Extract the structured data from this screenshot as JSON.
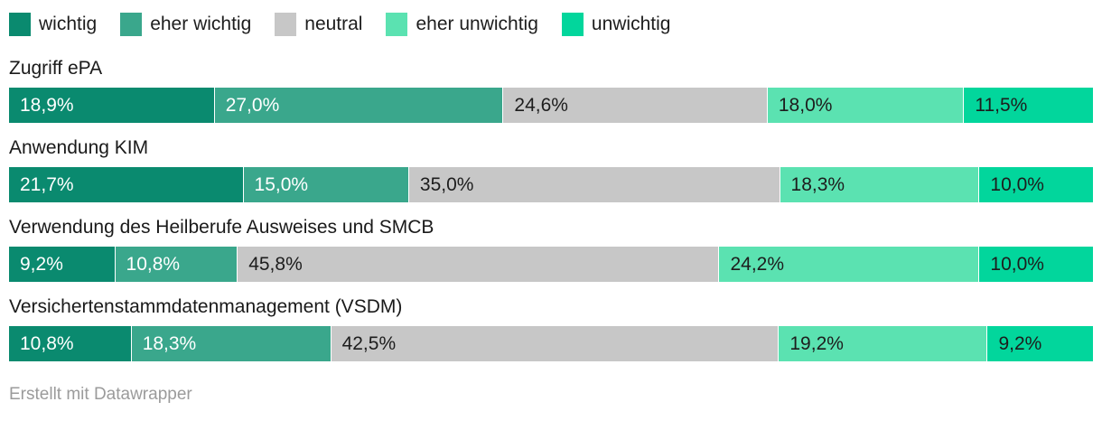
{
  "chart_data": {
    "type": "bar",
    "variant": "stacked-horizontal",
    "unit": "%",
    "xlim": [
      0,
      100
    ],
    "grid": false,
    "legend_position": "top",
    "legend": [
      "wichtig",
      "eher wichtig",
      "neutral",
      "eher unwichtig",
      "unwichtig"
    ],
    "colors": [
      "#0a8a6f",
      "#3aa78c",
      "#c7c7c7",
      "#5be2b1",
      "#02d69c"
    ],
    "label_colors": [
      "#ffffff",
      "#ffffff",
      "#1d1d1d",
      "#1d1d1d",
      "#1d1d1d"
    ],
    "categories": [
      "Zugriff ePA",
      "Anwendung KIM",
      "Verwendung des Heilberufe Ausweises und SMCB",
      "Versichertenstammdatenmanagement (VSDM)"
    ],
    "series": [
      {
        "name": "wichtig",
        "values": [
          18.9,
          21.7,
          9.2,
          10.8
        ]
      },
      {
        "name": "eher wichtig",
        "values": [
          27.0,
          15.0,
          10.8,
          18.3
        ]
      },
      {
        "name": "neutral",
        "values": [
          24.6,
          35.0,
          45.8,
          42.5
        ]
      },
      {
        "name": "eher unwichtig",
        "values": [
          18.0,
          18.3,
          24.2,
          19.2
        ]
      },
      {
        "name": "unwichtig",
        "values": [
          11.5,
          10.0,
          10.0,
          9.2
        ]
      }
    ]
  },
  "rows": [
    {
      "label": "Zugriff ePA",
      "segments": [
        {
          "display": "18,9%",
          "value": 18.9
        },
        {
          "display": "27,0%",
          "value": 27.0
        },
        {
          "display": "24,6%",
          "value": 24.6
        },
        {
          "display": "18,0%",
          "value": 18.0
        },
        {
          "display": "11,5%",
          "value": 11.5
        }
      ]
    },
    {
      "label": "Anwendung KIM",
      "segments": [
        {
          "display": "21,7%",
          "value": 21.7
        },
        {
          "display": "15,0%",
          "value": 15.0
        },
        {
          "display": "35,0%",
          "value": 35.0
        },
        {
          "display": "18,3%",
          "value": 18.3
        },
        {
          "display": "10,0%",
          "value": 10.0
        }
      ]
    },
    {
      "label": "Verwendung des Heilberufe Ausweises und SMCB",
      "segments": [
        {
          "display": "9,2%",
          "value": 9.2
        },
        {
          "display": "10,8%",
          "value": 10.8
        },
        {
          "display": "45,8%",
          "value": 45.8
        },
        {
          "display": "24,2%",
          "value": 24.2
        },
        {
          "display": "10,0%",
          "value": 10.0
        }
      ]
    },
    {
      "label": "Versichertenstammdatenmanagement (VSDM)",
      "segments": [
        {
          "display": "10,8%",
          "value": 10.8
        },
        {
          "display": "18,3%",
          "value": 18.3
        },
        {
          "display": "42,5%",
          "value": 42.5
        },
        {
          "display": "19,2%",
          "value": 19.2
        },
        {
          "display": "9,2%",
          "value": 9.2
        }
      ]
    }
  ],
  "footer": {
    "credit": "Erstellt mit Datawrapper"
  }
}
